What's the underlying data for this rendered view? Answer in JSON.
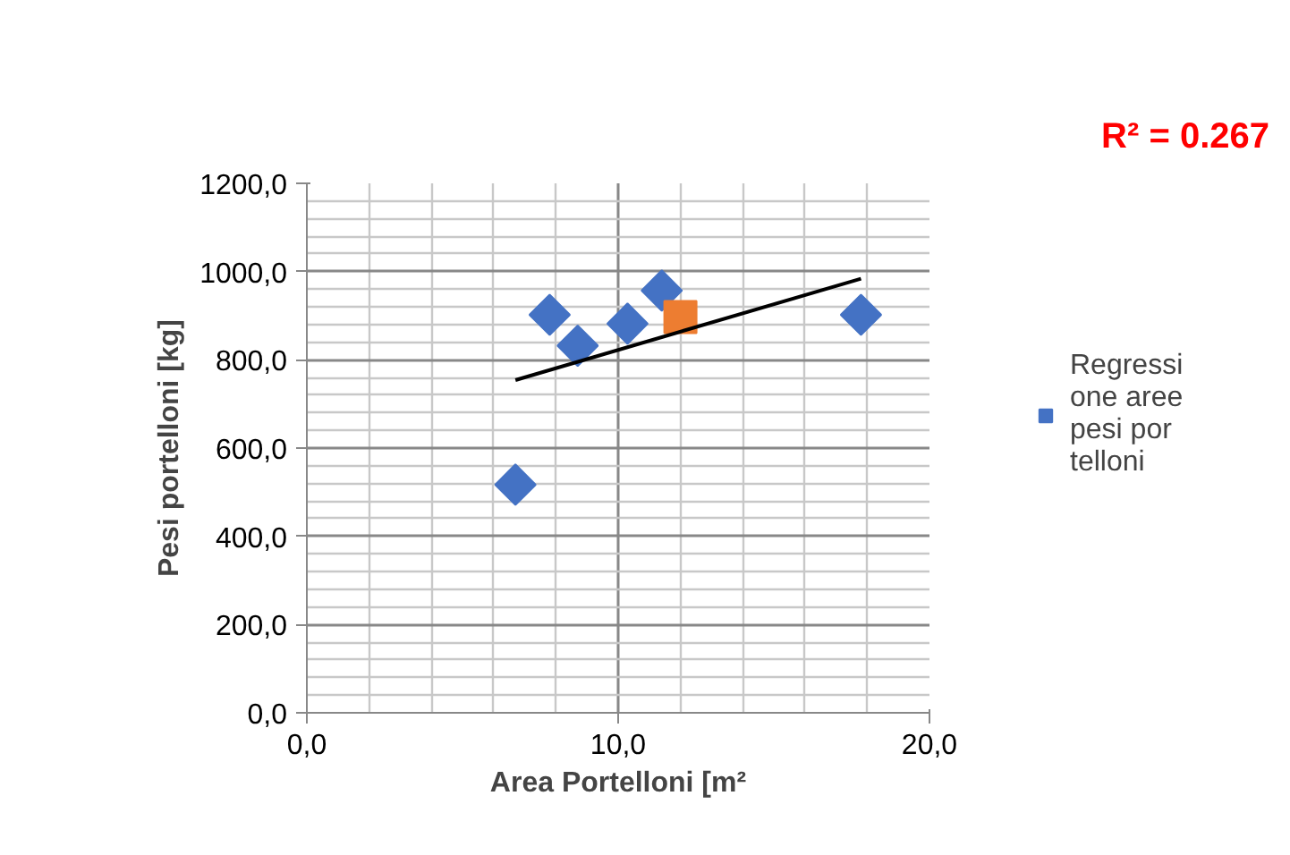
{
  "chart_data": {
    "type": "scatter",
    "xlabel": "Area Portelloni [m²",
    "ylabel": "Pesi portelloni [kg]",
    "annotations": [
      "R² = 0.267"
    ],
    "xlim": [
      0,
      20
    ],
    "ylim": [
      0,
      1200
    ],
    "xticks": [
      {
        "value": 0,
        "label": "0,0"
      },
      {
        "value": 10,
        "label": "10,0"
      },
      {
        "value": 20,
        "label": "20,0"
      }
    ],
    "yticks": [
      {
        "value": 0,
        "label": "0,0"
      },
      {
        "value": 200,
        "label": "200,0"
      },
      {
        "value": 400,
        "label": "400,0"
      },
      {
        "value": 600,
        "label": "600,0"
      },
      {
        "value": 800,
        "label": "800,0"
      },
      {
        "value": 1000,
        "label": "1000,0"
      },
      {
        "value": 1200,
        "label": "1200,0"
      }
    ],
    "grid": true,
    "legend": "right",
    "series": [
      {
        "name": "Regressione aree pesi portelloni",
        "color": "#4472c4",
        "marker": "diamond",
        "x": [
          6.7,
          7.8,
          8.7,
          10.3,
          11.4,
          17.8
        ],
        "values": [
          517,
          902,
          832,
          882,
          957,
          902
        ]
      },
      {
        "color": "#ed7d31",
        "marker": "square",
        "x": [
          12.0
        ],
        "values": [
          897
        ]
      },
      {
        "type": "line",
        "color": "#000000",
        "marker": "none",
        "x": [
          6.7,
          17.8
        ],
        "values": [
          754,
          984
        ]
      }
    ]
  }
}
